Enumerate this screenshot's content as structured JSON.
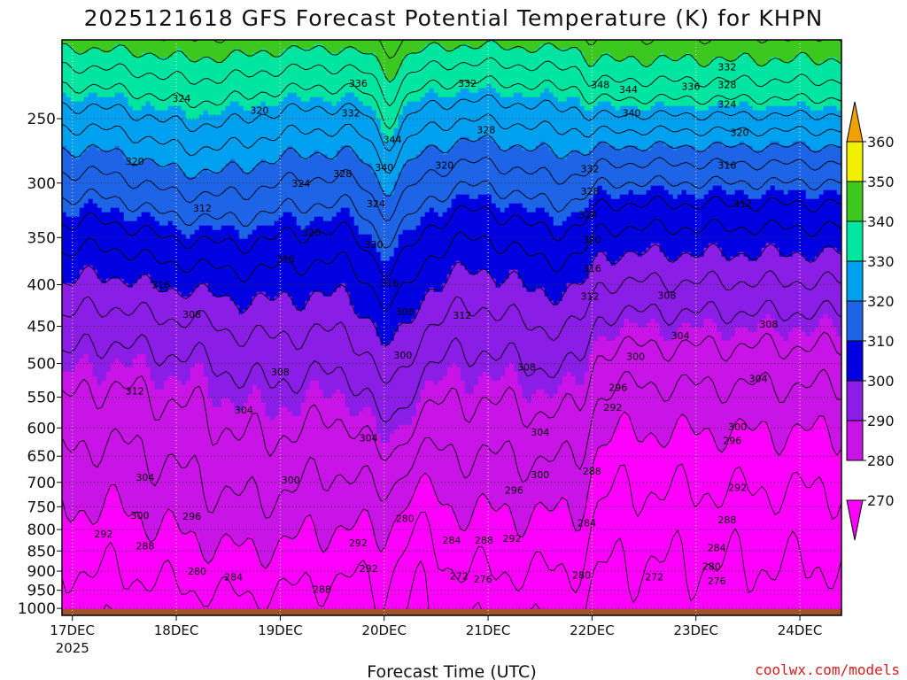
{
  "chart_data": {
    "type": "contour",
    "title": "2025121618 GFS Forecast Potential Temperature (K) for KHPN",
    "xlabel": "Forecast Time (UTC)",
    "ylabel": "",
    "x_ticks": [
      {
        "label": "17DEC",
        "sub": "2025",
        "day": 0
      },
      {
        "label": "18DEC",
        "sub": "",
        "day": 1
      },
      {
        "label": "19DEC",
        "sub": "",
        "day": 2
      },
      {
        "label": "20DEC",
        "sub": "",
        "day": 3
      },
      {
        "label": "21DEC",
        "sub": "",
        "day": 4
      },
      {
        "label": "22DEC",
        "sub": "",
        "day": 5
      },
      {
        "label": "23DEC",
        "sub": "",
        "day": 6
      },
      {
        "label": "24DEC",
        "sub": "",
        "day": 7
      }
    ],
    "xlim_days": [
      -0.1,
      7.4
    ],
    "y_ticks": [
      250,
      300,
      350,
      400,
      450,
      500,
      550,
      600,
      650,
      700,
      750,
      800,
      850,
      900,
      950,
      1000
    ],
    "ylim_hpa": [
      200,
      1020
    ],
    "y_scale": "log",
    "colorbar": {
      "levels": [
        270,
        280,
        290,
        300,
        310,
        320,
        330,
        340,
        350,
        360
      ],
      "colors": [
        "#ff00ff",
        "#c814e6",
        "#8a1ee6",
        "#0000e0",
        "#1e64e6",
        "#00a0f0",
        "#00e6a0",
        "#3cc81e",
        "#f0f000",
        "#f0a000"
      ]
    },
    "contour_interval_K": 4,
    "contour_labels": [
      {
        "text": "324",
        "day": 1.05,
        "p": 236
      },
      {
        "text": "320",
        "day": 1.8,
        "p": 244
      },
      {
        "text": "320",
        "day": 0.6,
        "p": 282
      },
      {
        "text": "312",
        "day": 1.25,
        "p": 322
      },
      {
        "text": "316",
        "day": 2.05,
        "p": 372
      },
      {
        "text": "316",
        "day": 0.85,
        "p": 400
      },
      {
        "text": "308",
        "day": 1.15,
        "p": 435
      },
      {
        "text": "312",
        "day": 0.6,
        "p": 540
      },
      {
        "text": "308",
        "day": 2.0,
        "p": 512
      },
      {
        "text": "304",
        "day": 1.65,
        "p": 570
      },
      {
        "text": "304",
        "day": 0.7,
        "p": 690
      },
      {
        "text": "300",
        "day": 0.65,
        "p": 768
      },
      {
        "text": "296",
        "day": 1.15,
        "p": 770
      },
      {
        "text": "292",
        "day": 0.3,
        "p": 810
      },
      {
        "text": "288",
        "day": 0.7,
        "p": 838
      },
      {
        "text": "280",
        "day": 1.2,
        "p": 900
      },
      {
        "text": "284",
        "day": 1.55,
        "p": 915
      },
      {
        "text": "300",
        "day": 2.1,
        "p": 695
      },
      {
        "text": "336",
        "day": 2.75,
        "p": 226
      },
      {
        "text": "332",
        "day": 2.68,
        "p": 246
      },
      {
        "text": "328",
        "day": 2.6,
        "p": 292
      },
      {
        "text": "324",
        "day": 2.2,
        "p": 300
      },
      {
        "text": "324",
        "day": 2.92,
        "p": 318
      },
      {
        "text": "320",
        "day": 2.3,
        "p": 345
      },
      {
        "text": "320",
        "day": 2.9,
        "p": 357
      },
      {
        "text": "344",
        "day": 3.08,
        "p": 265
      },
      {
        "text": "340",
        "day": 3.0,
        "p": 287
      },
      {
        "text": "332",
        "day": 3.8,
        "p": 226
      },
      {
        "text": "328",
        "day": 3.98,
        "p": 258
      },
      {
        "text": "320",
        "day": 3.58,
        "p": 285
      },
      {
        "text": "316",
        "day": 3.05,
        "p": 398
      },
      {
        "text": "308",
        "day": 3.2,
        "p": 432
      },
      {
        "text": "312",
        "day": 3.75,
        "p": 436
      },
      {
        "text": "300",
        "day": 3.18,
        "p": 488
      },
      {
        "text": "304",
        "day": 2.85,
        "p": 617
      },
      {
        "text": "292",
        "day": 2.75,
        "p": 830
      },
      {
        "text": "292",
        "day": 2.85,
        "p": 893
      },
      {
        "text": "288",
        "day": 2.4,
        "p": 947
      },
      {
        "text": "280",
        "day": 3.2,
        "p": 775
      },
      {
        "text": "284",
        "day": 3.65,
        "p": 824
      },
      {
        "text": "288",
        "day": 3.96,
        "p": 824
      },
      {
        "text": "292",
        "day": 4.23,
        "p": 820
      },
      {
        "text": "272",
        "day": 3.72,
        "p": 912
      },
      {
        "text": "276",
        "day": 3.95,
        "p": 920
      },
      {
        "text": "308",
        "day": 4.37,
        "p": 505
      },
      {
        "text": "304",
        "day": 4.5,
        "p": 607
      },
      {
        "text": "300",
        "day": 4.5,
        "p": 685
      },
      {
        "text": "296",
        "day": 4.25,
        "p": 715
      },
      {
        "text": "348",
        "day": 5.08,
        "p": 227
      },
      {
        "text": "344",
        "day": 5.35,
        "p": 230
      },
      {
        "text": "340",
        "day": 5.38,
        "p": 246
      },
      {
        "text": "336",
        "day": 5.95,
        "p": 228
      },
      {
        "text": "332",
        "day": 6.3,
        "p": 216
      },
      {
        "text": "328",
        "day": 6.3,
        "p": 227
      },
      {
        "text": "324",
        "day": 6.3,
        "p": 240
      },
      {
        "text": "320",
        "day": 6.42,
        "p": 260
      },
      {
        "text": "316",
        "day": 6.3,
        "p": 285
      },
      {
        "text": "312",
        "day": 6.45,
        "p": 318
      },
      {
        "text": "332",
        "day": 4.98,
        "p": 288
      },
      {
        "text": "328",
        "day": 4.98,
        "p": 307
      },
      {
        "text": "324",
        "day": 4.96,
        "p": 328
      },
      {
        "text": "320",
        "day": 5.0,
        "p": 352
      },
      {
        "text": "316",
        "day": 5.0,
        "p": 382
      },
      {
        "text": "312",
        "day": 4.98,
        "p": 413
      },
      {
        "text": "308",
        "day": 5.72,
        "p": 412
      },
      {
        "text": "304",
        "day": 5.85,
        "p": 462
      },
      {
        "text": "308",
        "day": 6.7,
        "p": 447
      },
      {
        "text": "304",
        "day": 6.6,
        "p": 522
      },
      {
        "text": "300",
        "day": 5.42,
        "p": 490
      },
      {
        "text": "296",
        "day": 5.25,
        "p": 535
      },
      {
        "text": "292",
        "day": 5.2,
        "p": 566
      },
      {
        "text": "300",
        "day": 6.4,
        "p": 598
      },
      {
        "text": "296",
        "day": 6.35,
        "p": 622
      },
      {
        "text": "288",
        "day": 5.0,
        "p": 678
      },
      {
        "text": "292",
        "day": 6.4,
        "p": 710
      },
      {
        "text": "288",
        "day": 6.3,
        "p": 778
      },
      {
        "text": "284",
        "day": 4.95,
        "p": 785
      },
      {
        "text": "284",
        "day": 6.2,
        "p": 842
      },
      {
        "text": "280",
        "day": 4.9,
        "p": 910
      },
      {
        "text": "280",
        "day": 6.15,
        "p": 888
      },
      {
        "text": "272",
        "day": 5.6,
        "p": 915
      },
      {
        "text": "276",
        "day": 6.2,
        "p": 925
      }
    ]
  },
  "credit": "coolwx.com/models"
}
